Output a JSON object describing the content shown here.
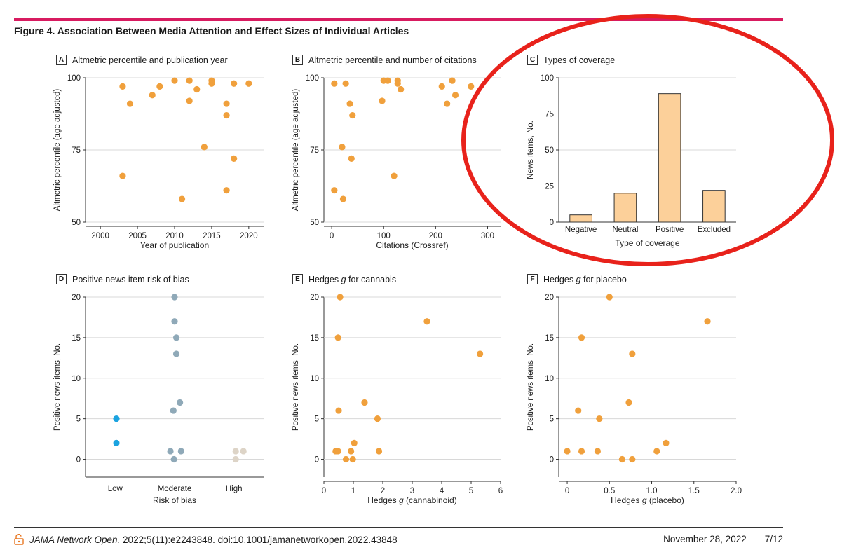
{
  "header": {
    "figure_title": "Figure 4. Association Between Media Attention and Effect Sizes of Individual Articles",
    "accent_color": "#d81b60"
  },
  "footer": {
    "journal": "JAMA Network Open.",
    "citation": " 2022;5(11):e2243848. doi:10.1001/jamanetworkopen.2022.43848",
    "date": "November 28, 2022",
    "page": "7/12",
    "icon": "open-access-lock-icon"
  },
  "annotation": {
    "shape": "ellipse",
    "color": "#e8221b"
  },
  "colors": {
    "orange": "#f0a03c",
    "bar_fill": "#fcd09a",
    "gray_blue": "#8fa9b8",
    "blue": "#1ba3e0",
    "beige": "#ddd4c7",
    "grid": "#d8d8d8"
  },
  "chart_data": [
    {
      "id": "A",
      "letter": "A",
      "title": "Altmetric percentile and publication year",
      "type": "scatter",
      "xlabel": "Year of publication",
      "ylabel": "Altmetric percentile (age adjusted)",
      "xlim": [
        1998,
        2022
      ],
      "ylim": [
        50,
        100
      ],
      "xticks": [
        2000,
        2005,
        2010,
        2015,
        2020
      ],
      "yticks": [
        50,
        75,
        100
      ],
      "points": [
        {
          "x": 2003,
          "y": 97
        },
        {
          "x": 2004,
          "y": 91
        },
        {
          "x": 2003,
          "y": 66
        },
        {
          "x": 2007,
          "y": 94
        },
        {
          "x": 2008,
          "y": 97
        },
        {
          "x": 2010,
          "y": 99
        },
        {
          "x": 2011,
          "y": 58
        },
        {
          "x": 2012,
          "y": 99
        },
        {
          "x": 2012,
          "y": 92
        },
        {
          "x": 2013,
          "y": 96
        },
        {
          "x": 2014,
          "y": 76
        },
        {
          "x": 2015,
          "y": 99
        },
        {
          "x": 2015,
          "y": 98
        },
        {
          "x": 2017,
          "y": 91
        },
        {
          "x": 2017,
          "y": 87
        },
        {
          "x": 2017,
          "y": 61
        },
        {
          "x": 2018,
          "y": 98
        },
        {
          "x": 2018,
          "y": 72
        },
        {
          "x": 2020,
          "y": 98
        }
      ]
    },
    {
      "id": "B",
      "letter": "B",
      "title": "Altmetric percentile and number of citations",
      "type": "scatter",
      "xlabel": "Citations (Crossref)",
      "ylabel": "Altmetric percentile (age adjusted)",
      "xlim": [
        -15,
        325
      ],
      "ylim": [
        50,
        100
      ],
      "xticks": [
        0,
        100,
        200,
        300
      ],
      "yticks": [
        50,
        75,
        100
      ],
      "points": [
        {
          "x": 5,
          "y": 98
        },
        {
          "x": 5,
          "y": 61
        },
        {
          "x": 20,
          "y": 76
        },
        {
          "x": 22,
          "y": 58
        },
        {
          "x": 27,
          "y": 98
        },
        {
          "x": 35,
          "y": 91
        },
        {
          "x": 40,
          "y": 87
        },
        {
          "x": 38,
          "y": 72
        },
        {
          "x": 97,
          "y": 92
        },
        {
          "x": 100,
          "y": 99
        },
        {
          "x": 108,
          "y": 99
        },
        {
          "x": 120,
          "y": 66
        },
        {
          "x": 127,
          "y": 99
        },
        {
          "x": 127,
          "y": 98
        },
        {
          "x": 133,
          "y": 96
        },
        {
          "x": 212,
          "y": 97
        },
        {
          "x": 222,
          "y": 91
        },
        {
          "x": 232,
          "y": 99
        },
        {
          "x": 238,
          "y": 94
        },
        {
          "x": 268,
          "y": 97
        }
      ]
    },
    {
      "id": "C",
      "letter": "C",
      "title": "Types of coverage",
      "type": "bar",
      "xlabel": "Type of coverage",
      "ylabel": "News items, No.",
      "ylim": [
        0,
        100
      ],
      "yticks": [
        0,
        25,
        50,
        75,
        100
      ],
      "categories": [
        "Negative",
        "Neutral",
        "Positive",
        "Excluded"
      ],
      "values": [
        5,
        20,
        89,
        22
      ]
    },
    {
      "id": "D",
      "letter": "D",
      "title": "Positive news item risk of bias",
      "type": "scatter",
      "xlabel": "Risk of bias",
      "ylabel": "Positive news items, No.",
      "categories": [
        "Low",
        "Moderate",
        "High"
      ],
      "ylim": [
        -2.2,
        20
      ],
      "yticks": [
        0,
        5,
        10,
        15,
        20
      ],
      "points": [
        {
          "cat": 0,
          "dx": 0.02,
          "y": 5,
          "color": "blue"
        },
        {
          "cat": 0,
          "dx": 0.02,
          "y": 2,
          "color": "blue"
        },
        {
          "cat": 1,
          "dx": 0.0,
          "y": 20,
          "color": "gray_blue"
        },
        {
          "cat": 1,
          "dx": 0.0,
          "y": 17,
          "color": "gray_blue"
        },
        {
          "cat": 1,
          "dx": 0.03,
          "y": 15,
          "color": "gray_blue"
        },
        {
          "cat": 1,
          "dx": 0.03,
          "y": 13,
          "color": "gray_blue"
        },
        {
          "cat": 1,
          "dx": 0.09,
          "y": 7,
          "color": "gray_blue"
        },
        {
          "cat": 1,
          "dx": -0.02,
          "y": 6,
          "color": "gray_blue"
        },
        {
          "cat": 1,
          "dx": -0.07,
          "y": 1,
          "color": "gray_blue"
        },
        {
          "cat": 1,
          "dx": 0.11,
          "y": 1,
          "color": "gray_blue"
        },
        {
          "cat": 1,
          "dx": -0.01,
          "y": 0,
          "color": "gray_blue"
        },
        {
          "cat": 2,
          "dx": 0.03,
          "y": 1,
          "color": "beige"
        },
        {
          "cat": 2,
          "dx": 0.16,
          "y": 1,
          "color": "beige"
        },
        {
          "cat": 2,
          "dx": 0.03,
          "y": 0,
          "color": "beige"
        }
      ]
    },
    {
      "id": "E",
      "letter": "E",
      "title_prefix": "Hedges ",
      "title_italic": "g",
      "title_suffix": " for cannabis",
      "type": "scatter",
      "xlabel_prefix": "Hedges ",
      "xlabel_italic": "g",
      "xlabel_suffix": " (cannabinoid)",
      "ylabel": "Positive news items, No.",
      "xlim": [
        0,
        6
      ],
      "ylim": [
        -2.2,
        20
      ],
      "xticks": [
        0,
        1,
        2,
        3,
        4,
        5,
        6
      ],
      "yticks": [
        0,
        5,
        10,
        15,
        20
      ],
      "points": [
        {
          "x": 0.55,
          "y": 20
        },
        {
          "x": 3.5,
          "y": 17
        },
        {
          "x": 0.48,
          "y": 15
        },
        {
          "x": 5.3,
          "y": 13
        },
        {
          "x": 1.38,
          "y": 7
        },
        {
          "x": 0.5,
          "y": 6
        },
        {
          "x": 1.82,
          "y": 5
        },
        {
          "x": 1.03,
          "y": 2
        },
        {
          "x": 0.4,
          "y": 1
        },
        {
          "x": 0.48,
          "y": 1
        },
        {
          "x": 0.92,
          "y": 1
        },
        {
          "x": 1.87,
          "y": 1
        },
        {
          "x": 0.75,
          "y": 0
        },
        {
          "x": 0.98,
          "y": 0
        }
      ]
    },
    {
      "id": "F",
      "letter": "F",
      "title_prefix": "Hedges ",
      "title_italic": "g",
      "title_suffix": " for placebo",
      "type": "scatter",
      "xlabel_prefix": "Hedges ",
      "xlabel_italic": "g",
      "xlabel_suffix": " (placebo)",
      "ylabel": "Positive news items, No.",
      "xlim": [
        -0.1,
        2.0
      ],
      "ylim": [
        -2.2,
        20
      ],
      "xticks": [
        0,
        0.5,
        1.0,
        1.5,
        2.0
      ],
      "xticklabels": [
        "0",
        "0.5",
        "1.0",
        "1.5",
        "2.0"
      ],
      "yticks": [
        0,
        5,
        10,
        15,
        20
      ],
      "points": [
        {
          "x": 0.5,
          "y": 20
        },
        {
          "x": 1.66,
          "y": 17
        },
        {
          "x": 0.17,
          "y": 15
        },
        {
          "x": 0.77,
          "y": 13
        },
        {
          "x": 0.73,
          "y": 7
        },
        {
          "x": 0.13,
          "y": 6
        },
        {
          "x": 0.38,
          "y": 5
        },
        {
          "x": 1.17,
          "y": 2
        },
        {
          "x": 0.0,
          "y": 1
        },
        {
          "x": 0.17,
          "y": 1
        },
        {
          "x": 0.36,
          "y": 1
        },
        {
          "x": 1.06,
          "y": 1
        },
        {
          "x": 0.65,
          "y": 0
        },
        {
          "x": 0.77,
          "y": 0
        }
      ]
    }
  ]
}
